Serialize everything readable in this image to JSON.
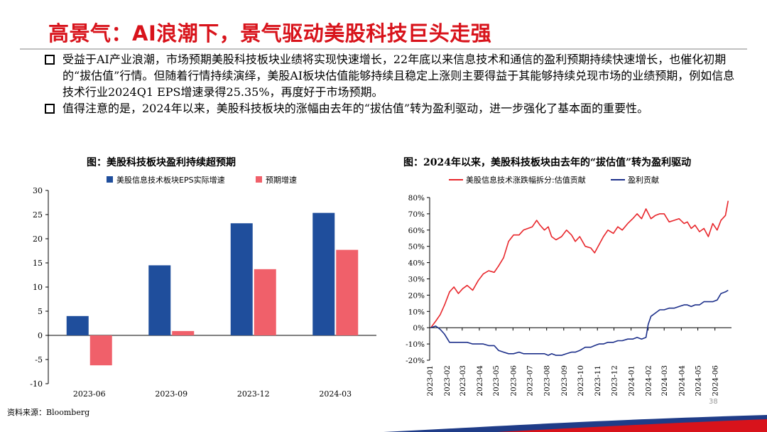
{
  "page": {
    "title": "高景气：AI浪潮下，景气驱动美股科技巨头走强",
    "bullets": [
      "受益于AI产业浪潮，市场预期美股科技板块业绩将实现快速增长，22年底以来信息技术和通信的盈利预期持续快速增长，也催化初期的“拔估值”行情。但随着行情持续演绎，美股AI板块估值能够持续且稳定上涨则主要得益于其能够持续兑现市场的业绩预期，例如信息技术行业2024Q1 EPS增速录得25.35%，再度好于市场预期。",
      "值得注意的是，2024年以来，美股科技板块的涨幅由去年的“拔估值”转为盈利驱动，进一步强化了基本面的重要性。"
    ],
    "source": "资料来源：Bloomberg",
    "page_number": "38",
    "colors": {
      "title": "#d8131b",
      "navy": "#1f4e9c",
      "salmon": "#f0606a",
      "line_red": "#e8262b",
      "line_navy": "#1c2f8a"
    }
  },
  "chart_data": [
    {
      "type": "bar",
      "title": "图：美股科技板块盈利持续超预期",
      "categories": [
        "2023-06",
        "2023-09",
        "2023-12",
        "2024-03"
      ],
      "series": [
        {
          "name": "美股信息技术板块EPS实际增速",
          "color": "#1f4e9c",
          "values": [
            4.0,
            14.5,
            23.2,
            25.35
          ]
        },
        {
          "name": "预期增速",
          "color": "#f0606a",
          "values": [
            -6.2,
            0.9,
            13.7,
            17.7
          ]
        }
      ],
      "ylim": [
        -10,
        30
      ],
      "yticks": [
        -10,
        -5,
        0,
        5,
        10,
        15,
        20,
        25,
        30
      ],
      "legend": "top"
    },
    {
      "type": "line",
      "title": "图：2024年以来，美股科技板块由去年的“拔估值”转为盈利驱动",
      "x_ticks": [
        "2023-01",
        "2023-02",
        "2023-03",
        "2023-04",
        "2023-05",
        "2023-06",
        "2023-07",
        "2023-08",
        "2023-09",
        "2023-10",
        "2023-11",
        "2023-12",
        "2024-01",
        "2024-02",
        "2024-03",
        "2024-04",
        "2024-05",
        "2024-06"
      ],
      "ylim": [
        -20,
        80
      ],
      "yticks": [
        "-20%",
        "-10%",
        "0%",
        "10%",
        "20%",
        "30%",
        "40%",
        "50%",
        "60%",
        "70%",
        "80%"
      ],
      "legend": "top",
      "series": [
        {
          "name": "美股信息技术涨跌幅拆分:估值贡献",
          "color": "#e8262b",
          "x": [
            "2023-01-03",
            "2023-01-12",
            "2023-01-20",
            "2023-01-28",
            "2023-02-06",
            "2023-02-14",
            "2023-02-22",
            "2023-03-02",
            "2023-03-10",
            "2023-03-20",
            "2023-03-30",
            "2023-04-08",
            "2023-04-18",
            "2023-04-28",
            "2023-05-06",
            "2023-05-15",
            "2023-05-24",
            "2023-06-02",
            "2023-06-12",
            "2023-06-20",
            "2023-06-28",
            "2023-07-06",
            "2023-07-14",
            "2023-07-20",
            "2023-07-28",
            "2023-08-04",
            "2023-08-10",
            "2023-08-18",
            "2023-08-28",
            "2023-09-06",
            "2023-09-15",
            "2023-09-22",
            "2023-09-30",
            "2023-10-10",
            "2023-10-20",
            "2023-10-27",
            "2023-11-04",
            "2023-11-12",
            "2023-11-20",
            "2023-11-30",
            "2023-12-08",
            "2023-12-16",
            "2023-12-26",
            "2024-01-04",
            "2024-01-12",
            "2024-01-20",
            "2024-01-28",
            "2024-02-06",
            "2024-02-14",
            "2024-02-22",
            "2024-03-01",
            "2024-03-10",
            "2024-03-19",
            "2024-03-28",
            "2024-04-06",
            "2024-04-12",
            "2024-04-19",
            "2024-04-26",
            "2024-05-04",
            "2024-05-12",
            "2024-05-20",
            "2024-05-28",
            "2024-06-05",
            "2024-06-12",
            "2024-06-20",
            "2024-06-25"
          ],
          "y": [
            0,
            4,
            8,
            14,
            22,
            25,
            21,
            24,
            26,
            23,
            29,
            33,
            35,
            34,
            38,
            43,
            53,
            57,
            57,
            60,
            61,
            62,
            66,
            63,
            60,
            62,
            56,
            54,
            56,
            60,
            57,
            53,
            56,
            50,
            49,
            46,
            51,
            56,
            60,
            58,
            62,
            60,
            64,
            67,
            70,
            67,
            73,
            67,
            69,
            70,
            70,
            65,
            66,
            67,
            64,
            65,
            61,
            63,
            59,
            61,
            56,
            64,
            60,
            66,
            69,
            78
          ]
        },
        {
          "name": "盈利贡献",
          "color": "#1c2f8a",
          "x": [
            "2023-01-03",
            "2023-01-12",
            "2023-01-20",
            "2023-01-28",
            "2023-02-06",
            "2023-02-14",
            "2023-02-22",
            "2023-03-02",
            "2023-03-10",
            "2023-03-20",
            "2023-03-30",
            "2023-04-08",
            "2023-04-18",
            "2023-04-28",
            "2023-05-06",
            "2023-05-15",
            "2023-05-24",
            "2023-06-02",
            "2023-06-12",
            "2023-06-20",
            "2023-06-28",
            "2023-07-06",
            "2023-07-14",
            "2023-07-20",
            "2023-07-28",
            "2023-08-04",
            "2023-08-10",
            "2023-08-18",
            "2023-08-28",
            "2023-09-06",
            "2023-09-15",
            "2023-09-22",
            "2023-09-30",
            "2023-10-10",
            "2023-10-20",
            "2023-10-27",
            "2023-11-04",
            "2023-11-12",
            "2023-11-20",
            "2023-11-30",
            "2023-12-08",
            "2023-12-16",
            "2023-12-26",
            "2024-01-04",
            "2024-01-12",
            "2024-01-20",
            "2024-01-28",
            "2024-02-01",
            "2024-02-06",
            "2024-02-14",
            "2024-02-22",
            "2024-03-01",
            "2024-03-10",
            "2024-03-19",
            "2024-03-28",
            "2024-04-06",
            "2024-04-12",
            "2024-04-19",
            "2024-04-26",
            "2024-05-04",
            "2024-05-12",
            "2024-05-20",
            "2024-05-28",
            "2024-06-05",
            "2024-06-12",
            "2024-06-20",
            "2024-06-25"
          ],
          "y": [
            0,
            1,
            -1,
            -4,
            -9,
            -9,
            -9,
            -9,
            -9,
            -10,
            -10,
            -10,
            -11,
            -11,
            -14,
            -15,
            -16,
            -16,
            -15,
            -16,
            -16,
            -16,
            -16,
            -16,
            -16,
            -17,
            -16,
            -17,
            -17,
            -16,
            -15,
            -15,
            -14,
            -12,
            -12,
            -11,
            -10,
            -10,
            -9,
            -9,
            -8,
            -8,
            -7,
            -7,
            -6,
            -7,
            -6,
            2,
            7,
            9,
            11,
            11,
            12,
            12,
            13,
            14,
            14,
            13,
            14,
            14,
            16,
            16,
            16,
            17,
            21,
            22,
            23
          ]
        }
      ]
    }
  ]
}
